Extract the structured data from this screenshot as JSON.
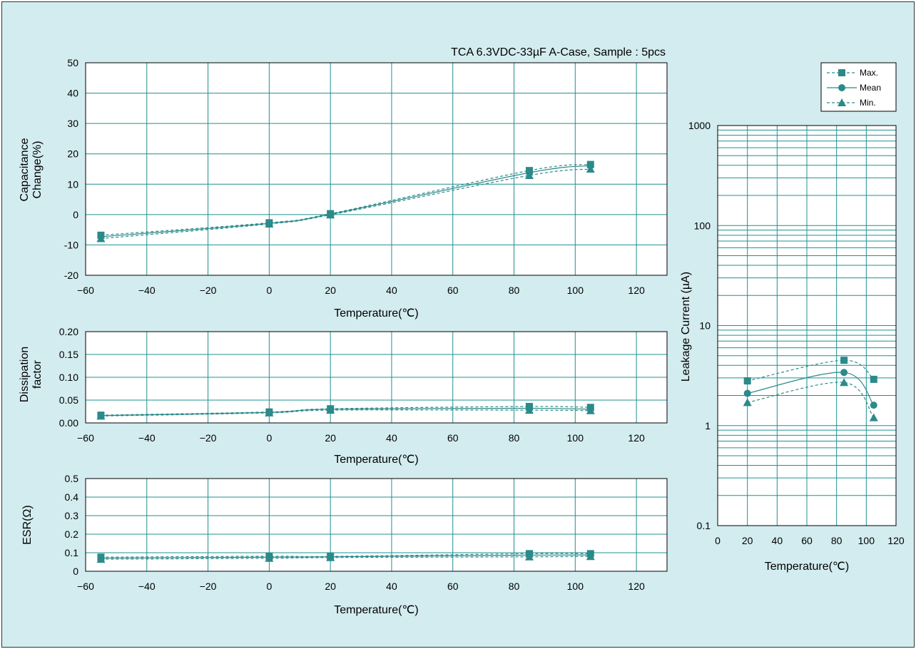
{
  "title": "TCA 6.3VDC-33µF A-Case, Sample : 5pcs",
  "colors": {
    "background": "#d3ecef",
    "plot": "#ffffff",
    "grid": "#1f9090",
    "series": "#2b8a8a"
  },
  "legend": {
    "placement": "top-right",
    "entries": [
      {
        "label": "Max.",
        "marker": "square",
        "style": "dashed"
      },
      {
        "label": "Mean",
        "marker": "circle",
        "style": "solid"
      },
      {
        "label": "Min.",
        "marker": "triangle",
        "style": "dashed"
      }
    ]
  },
  "chart_data": [
    {
      "id": "cap",
      "type": "line",
      "xlabel": "Temperature(℃)",
      "ylabel": [
        "Capacitance",
        "Change(%)"
      ],
      "xlim": [
        -60,
        130
      ],
      "ylim": [
        -20,
        50
      ],
      "xticks": [
        -60,
        -40,
        -20,
        0,
        20,
        40,
        60,
        80,
        100,
        120
      ],
      "yticks": [
        -20,
        -10,
        0,
        10,
        20,
        30,
        40,
        50
      ],
      "x": [
        -55,
        0,
        20,
        85,
        105
      ],
      "series": [
        {
          "name": "Max.",
          "values": [
            -6.8,
            -2.7,
            0.3,
            14.5,
            16.5
          ]
        },
        {
          "name": "Mean",
          "values": [
            -7.3,
            -2.9,
            0.1,
            13.8,
            16.1
          ]
        },
        {
          "name": "Min.",
          "values": [
            -7.9,
            -3.1,
            -0.1,
            12.9,
            15.0
          ]
        }
      ]
    },
    {
      "id": "df",
      "type": "line",
      "xlabel": "Temperature(℃)",
      "ylabel": [
        "Dissipation",
        "factor"
      ],
      "xlim": [
        -60,
        130
      ],
      "ylim": [
        0,
        0.2
      ],
      "xticks": [
        -60,
        -40,
        -20,
        0,
        20,
        40,
        60,
        80,
        100,
        120
      ],
      "yticks": [
        "0.00",
        "0.05",
        "0.10",
        "0.15",
        "0.20"
      ],
      "x": [
        -55,
        0,
        20,
        85,
        105
      ],
      "series": [
        {
          "name": "Max.",
          "values": [
            0.017,
            0.024,
            0.031,
            0.036,
            0.034
          ]
        },
        {
          "name": "Mean",
          "values": [
            0.016,
            0.023,
            0.03,
            0.032,
            0.03
          ]
        },
        {
          "name": "Min.",
          "values": [
            0.015,
            0.022,
            0.028,
            0.028,
            0.027
          ]
        }
      ]
    },
    {
      "id": "esr",
      "type": "line",
      "xlabel": "Temperature(℃)",
      "ylabel": [
        "ESR(Ω)"
      ],
      "xlim": [
        -60,
        130
      ],
      "ylim": [
        0,
        0.5
      ],
      "xticks": [
        -60,
        -40,
        -20,
        0,
        20,
        40,
        60,
        80,
        100,
        120
      ],
      "yticks": [
        "0",
        "0.1",
        "0.2",
        "0.3",
        "0.4",
        "0.5"
      ],
      "x": [
        -55,
        0,
        20,
        85,
        105
      ],
      "series": [
        {
          "name": "Max.",
          "values": [
            0.076,
            0.081,
            0.08,
            0.095,
            0.095
          ]
        },
        {
          "name": "Mean",
          "values": [
            0.071,
            0.076,
            0.078,
            0.087,
            0.088
          ]
        },
        {
          "name": "Min.",
          "values": [
            0.065,
            0.07,
            0.074,
            0.078,
            0.08
          ]
        }
      ]
    },
    {
      "id": "lc",
      "type": "line",
      "scale_y": "log",
      "xlabel": "Temperature(℃)",
      "ylabel": [
        "Leakage Current (µA)"
      ],
      "xlim": [
        0,
        120
      ],
      "ylim": [
        0.1,
        1000
      ],
      "xticks": [
        0,
        20,
        40,
        60,
        80,
        100,
        120
      ],
      "yticks": [
        "0.1",
        "1",
        "10",
        "100",
        "1000"
      ],
      "x": [
        20,
        85,
        105
      ],
      "series": [
        {
          "name": "Max.",
          "values": [
            2.8,
            4.5,
            2.9
          ]
        },
        {
          "name": "Mean",
          "values": [
            2.1,
            3.4,
            1.6
          ]
        },
        {
          "name": "Min.",
          "values": [
            1.7,
            2.7,
            1.2
          ]
        }
      ]
    }
  ]
}
